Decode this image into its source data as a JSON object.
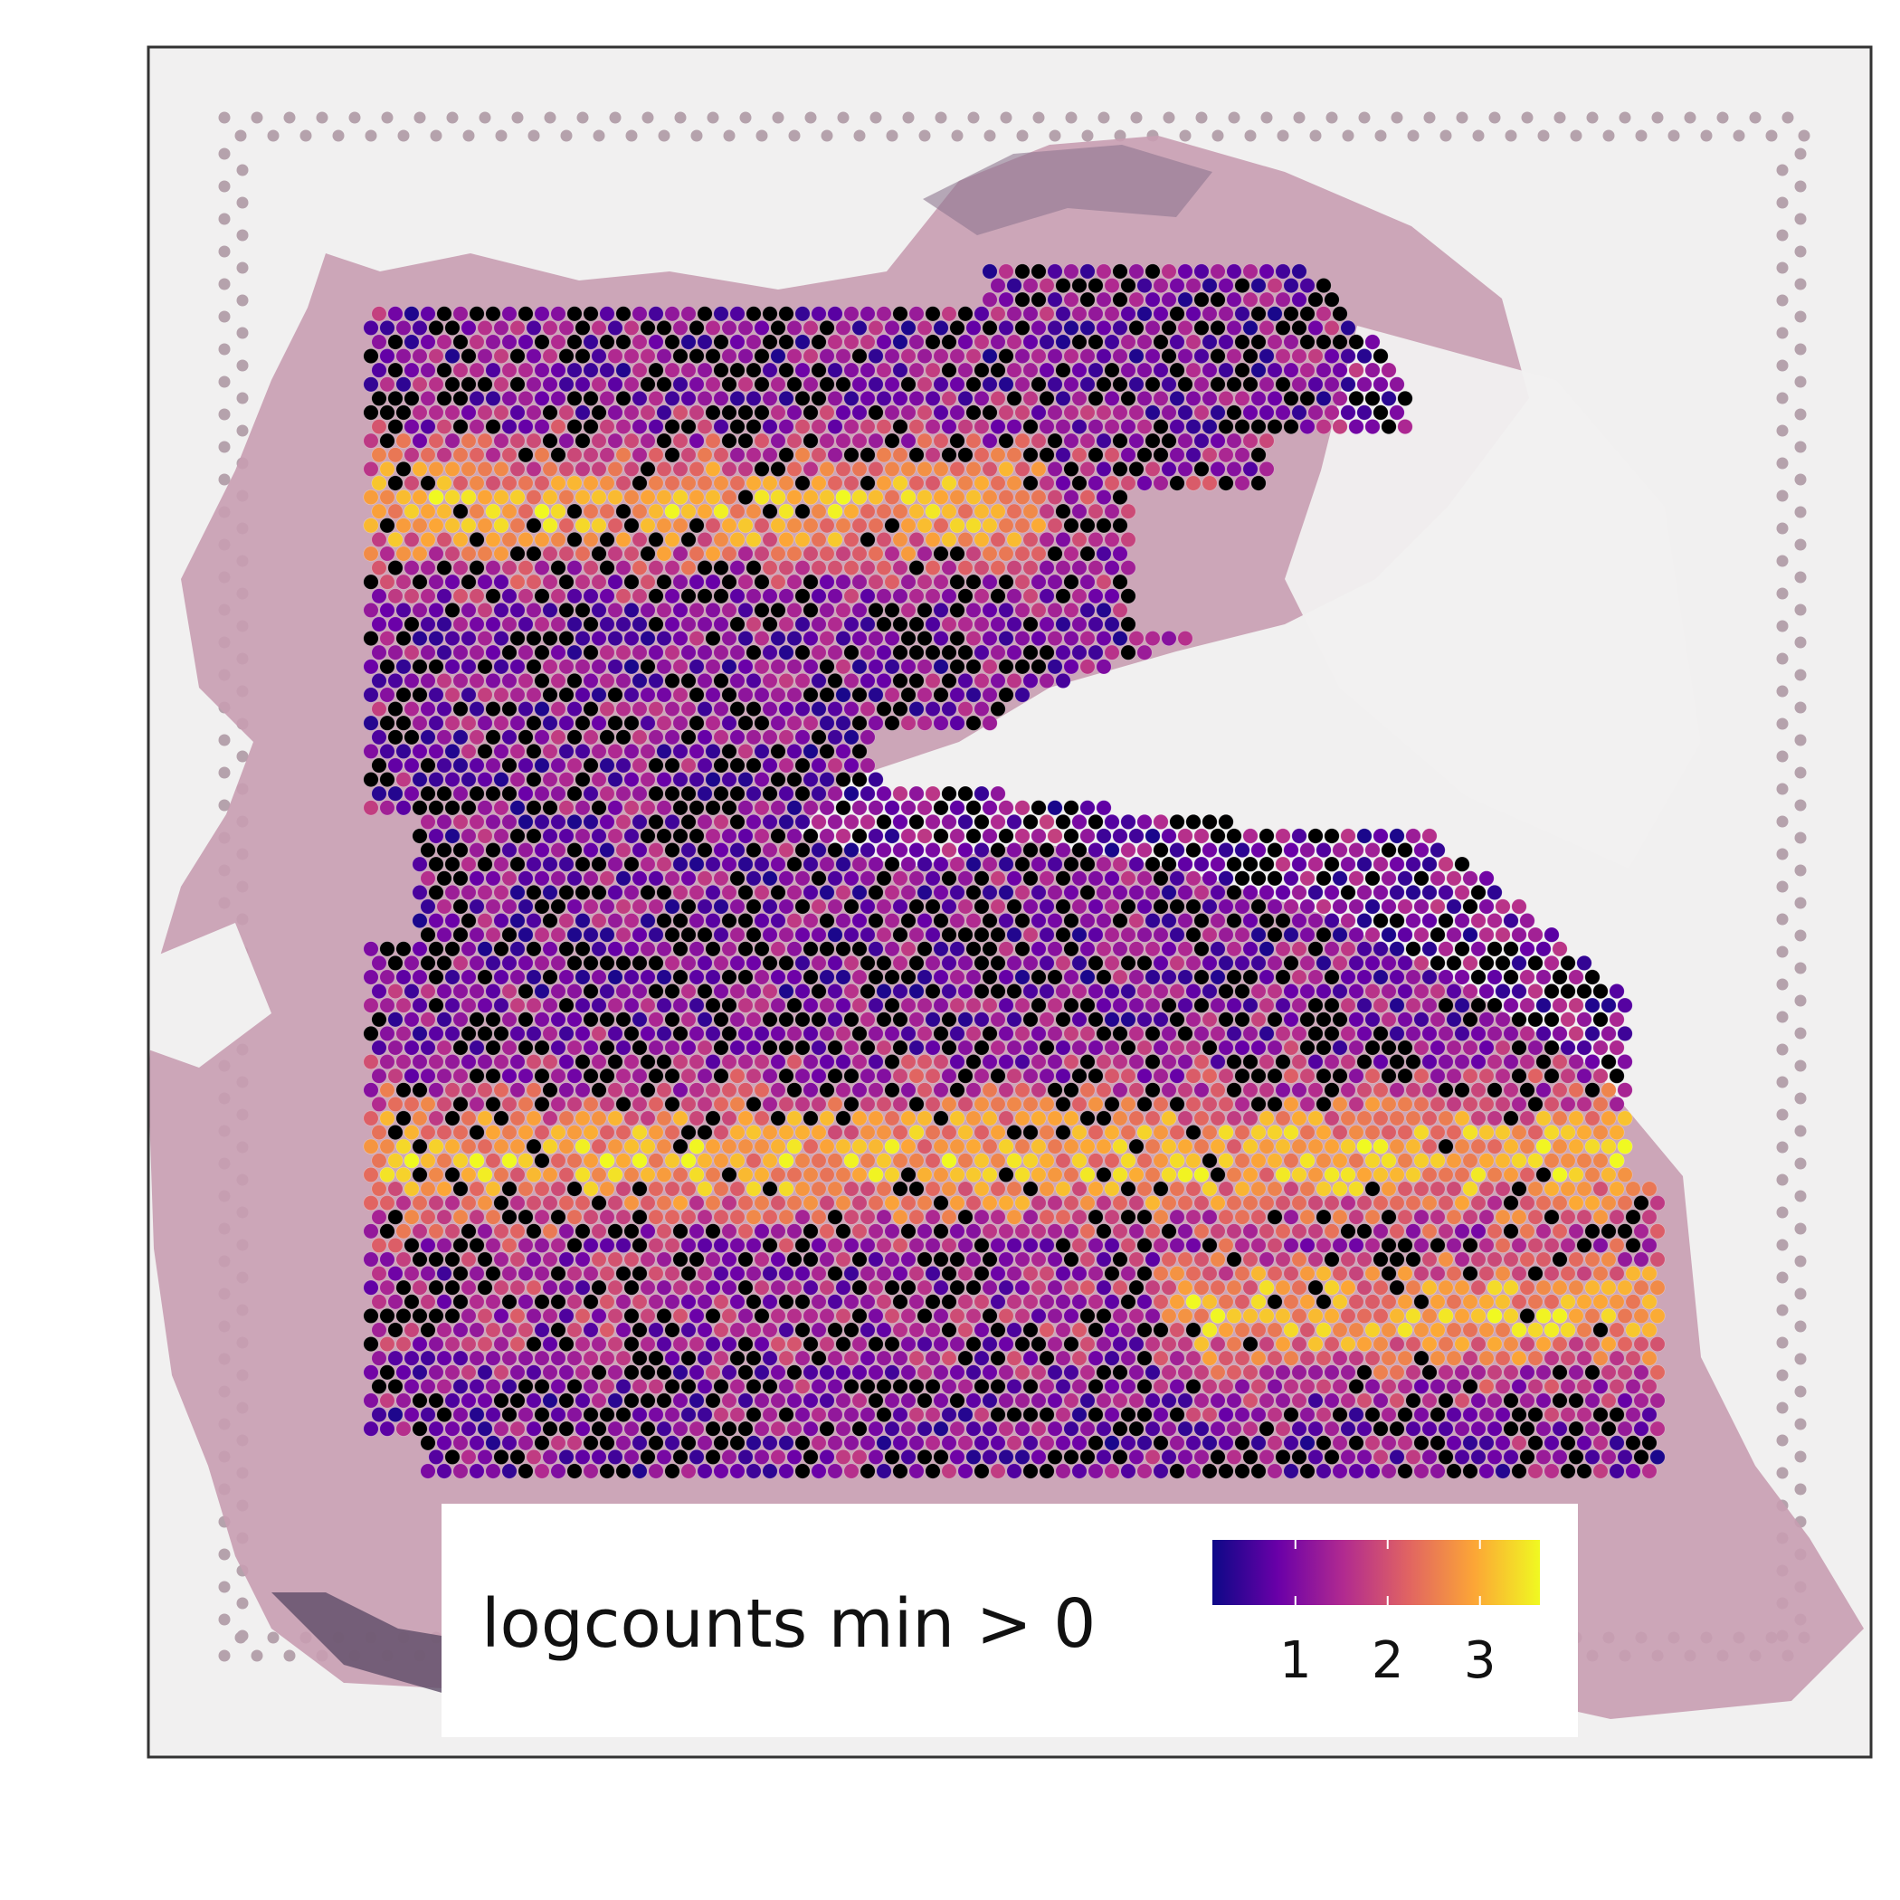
{
  "legend": {
    "title": "logcounts min > 0",
    "ticks": [
      "1",
      "2",
      "3"
    ],
    "tick_values": [
      1,
      2,
      3
    ],
    "range": [
      0.1,
      3.65
    ]
  },
  "colors": {
    "background": "#ffffff",
    "slide": "#f1f0f0",
    "tissue": "#c79aae",
    "tissue_dark": "#5f4a66",
    "fiducial": "#b5a2ac",
    "zero_spot": "#000000",
    "frame": "#333333",
    "colormap": "plasma",
    "colormap_stops": [
      "#0d0887",
      "#6a00a8",
      "#b12a90",
      "#e16462",
      "#fca636",
      "#f0f921"
    ]
  },
  "spots": {
    "zero_value_color": "black",
    "description_values": "logcounts per spot, zero shown in black"
  }
}
